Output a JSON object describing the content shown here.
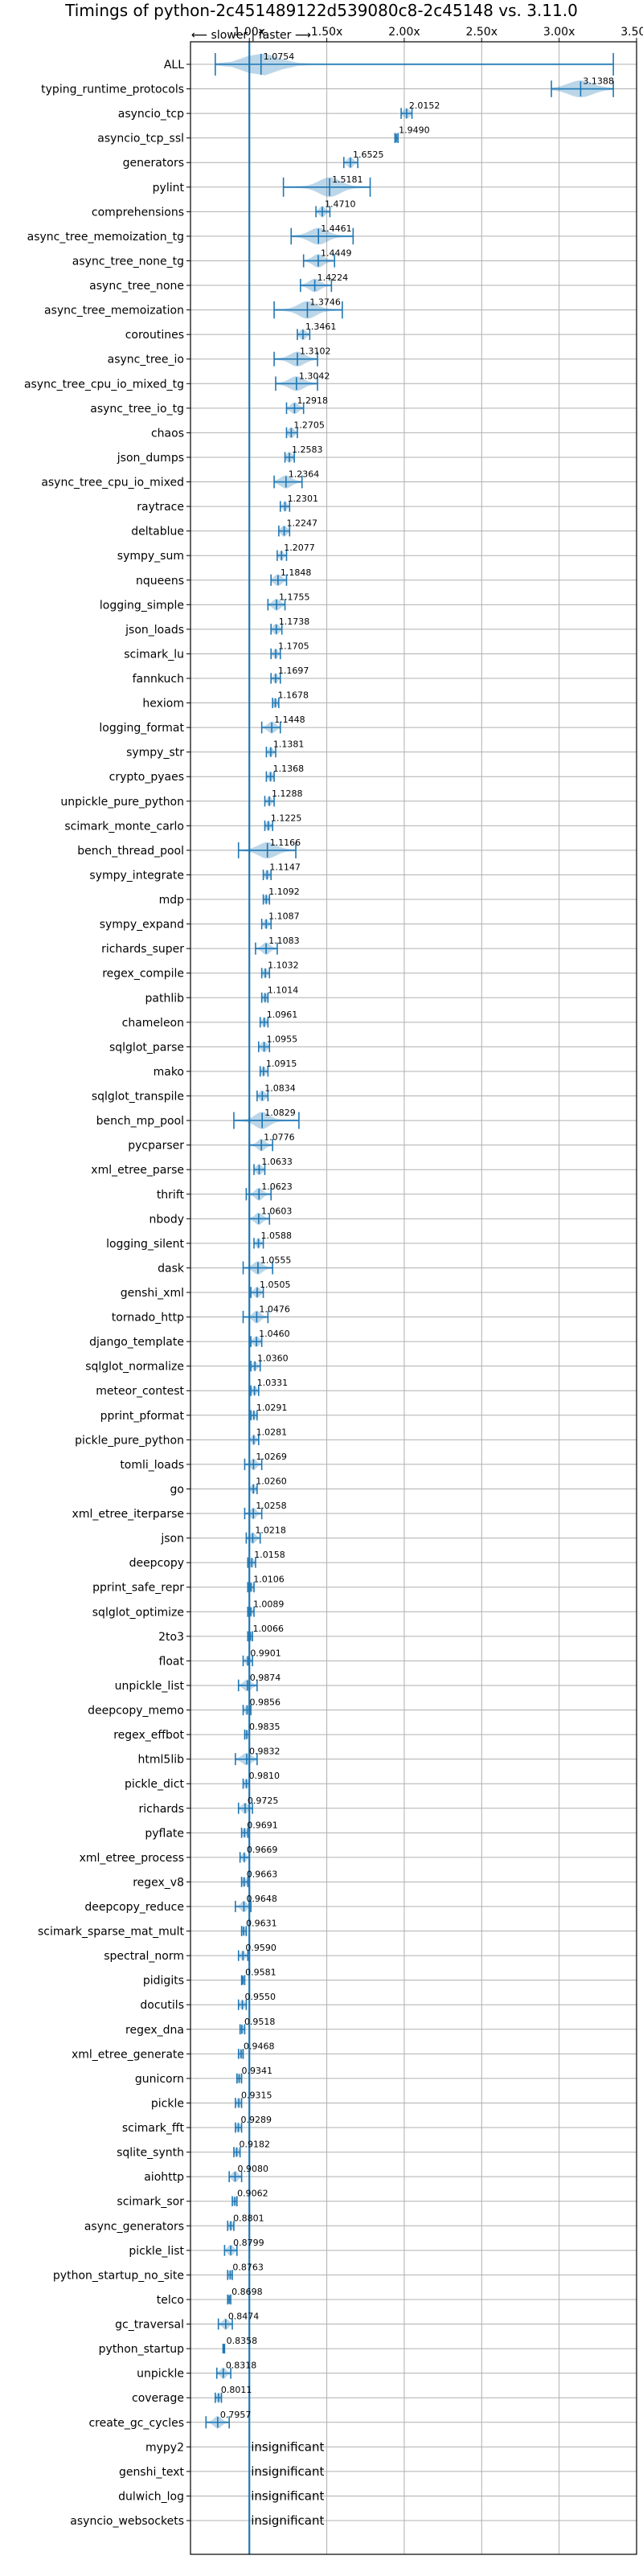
{
  "chart_data": {
    "type": "violin",
    "title": "Timings of python-2c451489122d539080c8-2c45148 vs. 3.11.0",
    "direction_note": "⟵ slower | faster ⟶",
    "xlim": [
      0.62,
      3.5
    ],
    "xticks": [
      "1.00x",
      "1.50x",
      "2.00x",
      "2.50x",
      "3.00x",
      "3.50x"
    ],
    "xtick_values": [
      1.0,
      1.5,
      2.0,
      2.5,
      3.0,
      3.5
    ],
    "reference_line": 1.0,
    "grid": true,
    "insignificant_label": "insignificant",
    "benchmarks": [
      {
        "name": "ALL",
        "label": "1.0754",
        "value": 1.0754,
        "lo": 0.78,
        "hi": 3.35,
        "spread": 0.18
      },
      {
        "name": "typing_runtime_protocols",
        "label": "3.1388",
        "value": 3.1388,
        "lo": 2.95,
        "hi": 3.35,
        "spread": 0.14
      },
      {
        "name": "asyncio_tcp",
        "label": "2.0152",
        "value": 2.0152,
        "lo": 1.98,
        "hi": 2.05,
        "spread": 0.03
      },
      {
        "name": "asyncio_tcp_ssl",
        "label": "1.9490",
        "value": 1.949,
        "lo": 1.94,
        "hi": 1.96,
        "spread": 0.01
      },
      {
        "name": "generators",
        "label": "1.6525",
        "value": 1.6525,
        "lo": 1.61,
        "hi": 1.7,
        "spread": 0.03
      },
      {
        "name": "pylint",
        "label": "1.5181",
        "value": 1.5181,
        "lo": 1.22,
        "hi": 1.78,
        "spread": 0.12
      },
      {
        "name": "comprehensions",
        "label": "1.4710",
        "value": 1.471,
        "lo": 1.43,
        "hi": 1.52,
        "spread": 0.03
      },
      {
        "name": "async_tree_memoization_tg",
        "label": "1.4461",
        "value": 1.4461,
        "lo": 1.27,
        "hi": 1.67,
        "spread": 0.1
      },
      {
        "name": "async_tree_none_tg",
        "label": "1.4449",
        "value": 1.4449,
        "lo": 1.35,
        "hi": 1.55,
        "spread": 0.06
      },
      {
        "name": "async_tree_none",
        "label": "1.4224",
        "value": 1.4224,
        "lo": 1.33,
        "hi": 1.53,
        "spread": 0.06
      },
      {
        "name": "async_tree_memoization",
        "label": "1.3746",
        "value": 1.3746,
        "lo": 1.16,
        "hi": 1.6,
        "spread": 0.1
      },
      {
        "name": "coroutines",
        "label": "1.3461",
        "value": 1.3461,
        "lo": 1.31,
        "hi": 1.39,
        "spread": 0.03
      },
      {
        "name": "async_tree_io",
        "label": "1.3102",
        "value": 1.3102,
        "lo": 1.16,
        "hi": 1.44,
        "spread": 0.08
      },
      {
        "name": "async_tree_cpu_io_mixed_tg",
        "label": "1.3042",
        "value": 1.3042,
        "lo": 1.17,
        "hi": 1.44,
        "spread": 0.08
      },
      {
        "name": "async_tree_io_tg",
        "label": "1.2918",
        "value": 1.2918,
        "lo": 1.24,
        "hi": 1.35,
        "spread": 0.04
      },
      {
        "name": "chaos",
        "label": "1.2705",
        "value": 1.2705,
        "lo": 1.24,
        "hi": 1.31,
        "spread": 0.03
      },
      {
        "name": "json_dumps",
        "label": "1.2583",
        "value": 1.2583,
        "lo": 1.23,
        "hi": 1.29,
        "spread": 0.03
      },
      {
        "name": "async_tree_cpu_io_mixed",
        "label": "1.2364",
        "value": 1.2364,
        "lo": 1.16,
        "hi": 1.34,
        "spread": 0.06
      },
      {
        "name": "raytrace",
        "label": "1.2301",
        "value": 1.2301,
        "lo": 1.2,
        "hi": 1.26,
        "spread": 0.02
      },
      {
        "name": "deltablue",
        "label": "1.2247",
        "value": 1.2247,
        "lo": 1.19,
        "hi": 1.26,
        "spread": 0.03
      },
      {
        "name": "sympy_sum",
        "label": "1.2077",
        "value": 1.2077,
        "lo": 1.18,
        "hi": 1.24,
        "spread": 0.02
      },
      {
        "name": "nqueens",
        "label": "1.1848",
        "value": 1.1848,
        "lo": 1.14,
        "hi": 1.24,
        "spread": 0.04
      },
      {
        "name": "logging_simple",
        "label": "1.1755",
        "value": 1.1755,
        "lo": 1.12,
        "hi": 1.23,
        "spread": 0.04
      },
      {
        "name": "json_loads",
        "label": "1.1738",
        "value": 1.1738,
        "lo": 1.14,
        "hi": 1.21,
        "spread": 0.03
      },
      {
        "name": "scimark_lu",
        "label": "1.1705",
        "value": 1.1705,
        "lo": 1.14,
        "hi": 1.2,
        "spread": 0.02
      },
      {
        "name": "fannkuch",
        "label": "1.1697",
        "value": 1.1697,
        "lo": 1.14,
        "hi": 1.2,
        "spread": 0.02
      },
      {
        "name": "hexiom",
        "label": "1.1678",
        "value": 1.1678,
        "lo": 1.15,
        "hi": 1.19,
        "spread": 0.02
      },
      {
        "name": "logging_format",
        "label": "1.1448",
        "value": 1.1448,
        "lo": 1.08,
        "hi": 1.2,
        "spread": 0.04
      },
      {
        "name": "sympy_str",
        "label": "1.1381",
        "value": 1.1381,
        "lo": 1.11,
        "hi": 1.17,
        "spread": 0.02
      },
      {
        "name": "crypto_pyaes",
        "label": "1.1368",
        "value": 1.1368,
        "lo": 1.11,
        "hi": 1.16,
        "spread": 0.02
      },
      {
        "name": "unpickle_pure_python",
        "label": "1.1288",
        "value": 1.1288,
        "lo": 1.1,
        "hi": 1.16,
        "spread": 0.02
      },
      {
        "name": "scimark_monte_carlo",
        "label": "1.1225",
        "value": 1.1225,
        "lo": 1.1,
        "hi": 1.15,
        "spread": 0.02
      },
      {
        "name": "bench_thread_pool",
        "label": "1.1166",
        "value": 1.1166,
        "lo": 0.93,
        "hi": 1.3,
        "spread": 0.1
      },
      {
        "name": "sympy_integrate",
        "label": "1.1147",
        "value": 1.1147,
        "lo": 1.09,
        "hi": 1.14,
        "spread": 0.02
      },
      {
        "name": "mdp",
        "label": "1.1092",
        "value": 1.1092,
        "lo": 1.09,
        "hi": 1.13,
        "spread": 0.02
      },
      {
        "name": "sympy_expand",
        "label": "1.1087",
        "value": 1.1087,
        "lo": 1.08,
        "hi": 1.14,
        "spread": 0.02
      },
      {
        "name": "richards_super",
        "label": "1.1083",
        "value": 1.1083,
        "lo": 1.04,
        "hi": 1.18,
        "spread": 0.04
      },
      {
        "name": "regex_compile",
        "label": "1.1032",
        "value": 1.1032,
        "lo": 1.08,
        "hi": 1.13,
        "spread": 0.02
      },
      {
        "name": "pathlib",
        "label": "1.1014",
        "value": 1.1014,
        "lo": 1.08,
        "hi": 1.12,
        "spread": 0.02
      },
      {
        "name": "chameleon",
        "label": "1.0961",
        "value": 1.0961,
        "lo": 1.07,
        "hi": 1.12,
        "spread": 0.02
      },
      {
        "name": "sqlglot_parse",
        "label": "1.0955",
        "value": 1.0955,
        "lo": 1.06,
        "hi": 1.13,
        "spread": 0.03
      },
      {
        "name": "mako",
        "label": "1.0915",
        "value": 1.0915,
        "lo": 1.07,
        "hi": 1.12,
        "spread": 0.02
      },
      {
        "name": "sqlglot_transpile",
        "label": "1.0834",
        "value": 1.0834,
        "lo": 1.05,
        "hi": 1.12,
        "spread": 0.03
      },
      {
        "name": "bench_mp_pool",
        "label": "1.0829",
        "value": 1.0829,
        "lo": 0.9,
        "hi": 1.32,
        "spread": 0.08
      },
      {
        "name": "pycparser",
        "label": "1.0776",
        "value": 1.0776,
        "lo": 1.0,
        "hi": 1.15,
        "spread": 0.04
      },
      {
        "name": "xml_etree_parse",
        "label": "1.0633",
        "value": 1.0633,
        "lo": 1.03,
        "hi": 1.1,
        "spread": 0.03
      },
      {
        "name": "thrift",
        "label": "1.0623",
        "value": 1.0623,
        "lo": 0.98,
        "hi": 1.14,
        "spread": 0.04
      },
      {
        "name": "nbody",
        "label": "1.0603",
        "value": 1.0603,
        "lo": 1.0,
        "hi": 1.13,
        "spread": 0.04
      },
      {
        "name": "logging_silent",
        "label": "1.0588",
        "value": 1.0588,
        "lo": 1.03,
        "hi": 1.09,
        "spread": 0.02
      },
      {
        "name": "dask",
        "label": "1.0555",
        "value": 1.0555,
        "lo": 0.96,
        "hi": 1.15,
        "spread": 0.05
      },
      {
        "name": "genshi_xml",
        "label": "1.0505",
        "value": 1.0505,
        "lo": 1.01,
        "hi": 1.09,
        "spread": 0.03
      },
      {
        "name": "tornado_http",
        "label": "1.0476",
        "value": 1.0476,
        "lo": 0.96,
        "hi": 1.12,
        "spread": 0.04
      },
      {
        "name": "django_template",
        "label": "1.0460",
        "value": 1.046,
        "lo": 1.01,
        "hi": 1.08,
        "spread": 0.03
      },
      {
        "name": "sqlglot_normalize",
        "label": "1.0360",
        "value": 1.036,
        "lo": 1.01,
        "hi": 1.07,
        "spread": 0.02
      },
      {
        "name": "meteor_contest",
        "label": "1.0331",
        "value": 1.0331,
        "lo": 1.01,
        "hi": 1.06,
        "spread": 0.02
      },
      {
        "name": "pprint_pformat",
        "label": "1.0291",
        "value": 1.0291,
        "lo": 1.01,
        "hi": 1.05,
        "spread": 0.02
      },
      {
        "name": "pickle_pure_python",
        "label": "1.0281",
        "value": 1.0281,
        "lo": 1.0,
        "hi": 1.06,
        "spread": 0.02
      },
      {
        "name": "tomli_loads",
        "label": "1.0269",
        "value": 1.0269,
        "lo": 0.97,
        "hi": 1.08,
        "spread": 0.03
      },
      {
        "name": "go",
        "label": "1.0260",
        "value": 1.026,
        "lo": 1.0,
        "hi": 1.05,
        "spread": 0.02
      },
      {
        "name": "xml_etree_iterparse",
        "label": "1.0258",
        "value": 1.0258,
        "lo": 0.97,
        "hi": 1.08,
        "spread": 0.03
      },
      {
        "name": "json",
        "label": "1.0218",
        "value": 1.0218,
        "lo": 0.98,
        "hi": 1.07,
        "spread": 0.03
      },
      {
        "name": "deepcopy",
        "label": "1.0158",
        "value": 1.0158,
        "lo": 0.99,
        "hi": 1.04,
        "spread": 0.02
      },
      {
        "name": "pprint_safe_repr",
        "label": "1.0106",
        "value": 1.0106,
        "lo": 0.99,
        "hi": 1.03,
        "spread": 0.02
      },
      {
        "name": "sqlglot_optimize",
        "label": "1.0089",
        "value": 1.0089,
        "lo": 0.99,
        "hi": 1.03,
        "spread": 0.02
      },
      {
        "name": "2to3",
        "label": "1.0066",
        "value": 1.0066,
        "lo": 0.99,
        "hi": 1.02,
        "spread": 0.02
      },
      {
        "name": "float",
        "label": "0.9901",
        "value": 0.9901,
        "lo": 0.96,
        "hi": 1.02,
        "spread": 0.02
      },
      {
        "name": "unpickle_list",
        "label": "0.9874",
        "value": 0.9874,
        "lo": 0.93,
        "hi": 1.05,
        "spread": 0.04
      },
      {
        "name": "deepcopy_memo",
        "label": "0.9856",
        "value": 0.9856,
        "lo": 0.96,
        "hi": 1.01,
        "spread": 0.02
      },
      {
        "name": "regex_effbot",
        "label": "0.9835",
        "value": 0.9835,
        "lo": 0.97,
        "hi": 1.0,
        "spread": 0.02
      },
      {
        "name": "html5lib",
        "label": "0.9832",
        "value": 0.9832,
        "lo": 0.91,
        "hi": 1.05,
        "spread": 0.05
      },
      {
        "name": "pickle_dict",
        "label": "0.9810",
        "value": 0.981,
        "lo": 0.96,
        "hi": 1.0,
        "spread": 0.02
      },
      {
        "name": "richards",
        "label": "0.9725",
        "value": 0.9725,
        "lo": 0.93,
        "hi": 1.02,
        "spread": 0.03
      },
      {
        "name": "pyflate",
        "label": "0.9691",
        "value": 0.9691,
        "lo": 0.95,
        "hi": 0.99,
        "spread": 0.02
      },
      {
        "name": "xml_etree_process",
        "label": "0.9669",
        "value": 0.9669,
        "lo": 0.94,
        "hi": 1.0,
        "spread": 0.02
      },
      {
        "name": "regex_v8",
        "label": "0.9663",
        "value": 0.9663,
        "lo": 0.95,
        "hi": 0.99,
        "spread": 0.02
      },
      {
        "name": "deepcopy_reduce",
        "label": "0.9648",
        "value": 0.9648,
        "lo": 0.91,
        "hi": 1.01,
        "spread": 0.03
      },
      {
        "name": "scimark_sparse_mat_mult",
        "label": "0.9631",
        "value": 0.9631,
        "lo": 0.95,
        "hi": 0.98,
        "spread": 0.02
      },
      {
        "name": "spectral_norm",
        "label": "0.9590",
        "value": 0.959,
        "lo": 0.93,
        "hi": 0.99,
        "spread": 0.02
      },
      {
        "name": "pidigits",
        "label": "0.9581",
        "value": 0.9581,
        "lo": 0.95,
        "hi": 0.97,
        "spread": 0.01
      },
      {
        "name": "docutils",
        "label": "0.9550",
        "value": 0.955,
        "lo": 0.93,
        "hi": 0.98,
        "spread": 0.02
      },
      {
        "name": "regex_dna",
        "label": "0.9518",
        "value": 0.9518,
        "lo": 0.94,
        "hi": 0.97,
        "spread": 0.01
      },
      {
        "name": "xml_etree_generate",
        "label": "0.9468",
        "value": 0.9468,
        "lo": 0.93,
        "hi": 0.96,
        "spread": 0.01
      },
      {
        "name": "gunicorn",
        "label": "0.9341",
        "value": 0.9341,
        "lo": 0.92,
        "hi": 0.95,
        "spread": 0.01
      },
      {
        "name": "pickle",
        "label": "0.9315",
        "value": 0.9315,
        "lo": 0.91,
        "hi": 0.95,
        "spread": 0.02
      },
      {
        "name": "scimark_fft",
        "label": "0.9289",
        "value": 0.9289,
        "lo": 0.91,
        "hi": 0.95,
        "spread": 0.02
      },
      {
        "name": "sqlite_synth",
        "label": "0.9182",
        "value": 0.9182,
        "lo": 0.9,
        "hi": 0.94,
        "spread": 0.02
      },
      {
        "name": "aiohttp",
        "label": "0.9080",
        "value": 0.908,
        "lo": 0.87,
        "hi": 0.95,
        "spread": 0.03
      },
      {
        "name": "scimark_sor",
        "label": "0.9062",
        "value": 0.9062,
        "lo": 0.89,
        "hi": 0.92,
        "spread": 0.01
      },
      {
        "name": "async_generators",
        "label": "0.8801",
        "value": 0.8801,
        "lo": 0.86,
        "hi": 0.9,
        "spread": 0.02
      },
      {
        "name": "pickle_list",
        "label": "0.8799",
        "value": 0.8799,
        "lo": 0.84,
        "hi": 0.92,
        "spread": 0.03
      },
      {
        "name": "python_startup_no_site",
        "label": "0.8763",
        "value": 0.8763,
        "lo": 0.86,
        "hi": 0.89,
        "spread": 0.01
      },
      {
        "name": "telco",
        "label": "0.8698",
        "value": 0.8698,
        "lo": 0.86,
        "hi": 0.88,
        "spread": 0.01
      },
      {
        "name": "gc_traversal",
        "label": "0.8474",
        "value": 0.8474,
        "lo": 0.8,
        "hi": 0.89,
        "spread": 0.03
      },
      {
        "name": "python_startup",
        "label": "0.8358",
        "value": 0.8358,
        "lo": 0.83,
        "hi": 0.84,
        "spread": 0.01
      },
      {
        "name": "unpickle",
        "label": "0.8318",
        "value": 0.8318,
        "lo": 0.79,
        "hi": 0.88,
        "spread": 0.03
      },
      {
        "name": "coverage",
        "label": "0.8011",
        "value": 0.8011,
        "lo": 0.78,
        "hi": 0.82,
        "spread": 0.02
      },
      {
        "name": "create_gc_cycles",
        "label": "0.7957",
        "value": 0.7957,
        "lo": 0.72,
        "hi": 0.87,
        "spread": 0.04
      },
      {
        "name": "mypy2",
        "label": "insignificant",
        "value": null
      },
      {
        "name": "genshi_text",
        "label": "insignificant",
        "value": null
      },
      {
        "name": "dulwich_log",
        "label": "insignificant",
        "value": null
      },
      {
        "name": "asyncio_websockets",
        "label": "insignificant",
        "value": null
      }
    ]
  }
}
